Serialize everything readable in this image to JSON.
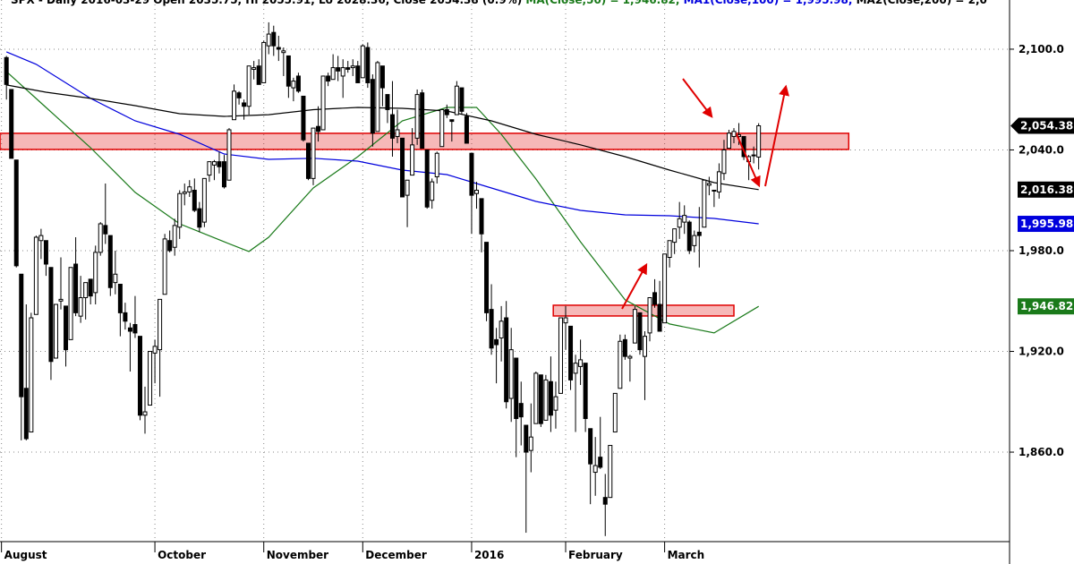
{
  "chart_data": {
    "type": "candlestick",
    "title_parts": [
      {
        "text": "SPX - Daily 2016-03-29 Open 2035.75, Hi 2055.91, Lo 2028.36, Close 2054.38 (0.9%) ",
        "color": "#000000"
      },
      {
        "text": "MA(Close,50) = 1,946.82, ",
        "color": "#1a7a1a"
      },
      {
        "text": "MA1(Close,100) = 1,995.98, ",
        "color": "#0000dd"
      },
      {
        "text": "MA2(Close,200) = 2,0",
        "color": "#000000"
      }
    ],
    "xlim": [
      -1.3,
      202.7
    ],
    "xticks": [
      {
        "value": -1,
        "label": "August"
      },
      {
        "value": 30,
        "label": "October"
      },
      {
        "value": 52,
        "label": "November"
      },
      {
        "value": 72,
        "label": "December"
      },
      {
        "value": 94,
        "label": "2016"
      },
      {
        "value": 113,
        "label": "February"
      },
      {
        "value": 133,
        "label": "March"
      }
    ],
    "ylim": [
      1806.7,
      2129.3
    ],
    "yticks": [
      {
        "value": 1860,
        "label": "1,860.0"
      },
      {
        "value": 1920,
        "label": "1,920.0"
      },
      {
        "value": 1980,
        "label": "1,980.0"
      },
      {
        "value": 2040,
        "label": "2,040.0"
      },
      {
        "value": 2100,
        "label": "2,100.0"
      }
    ],
    "grid": true,
    "up_color": "#ffffff",
    "down_color": "#000000",
    "open": [
      2095,
      2076,
      2034,
      1966,
      1898,
      1872,
      1942,
      1986,
      1986,
      1970,
      1916,
      1950,
      1947,
      1927,
      1972,
      1941,
      1952,
      1963,
      1955,
      1979,
      1995,
      1989,
      1961,
      1960,
      1943,
      1934,
      1936,
      1929,
      1882,
      1888,
      1919,
      1921,
      1954,
      1986,
      1982,
      1994,
      2014,
      2015,
      2016,
      2005,
      1997,
      2025,
      2031,
      2033,
      2033,
      2022,
      2058,
      2074,
      2068,
      2066,
      2088,
      2090,
      2080,
      2102,
      2110,
      2101,
      2098,
      2096,
      2077,
      2084,
      2072,
      2044,
      2023,
      2054,
      2052,
      2084,
      2082,
      2089,
      2084,
      2089,
      2089,
      2090,
      2083,
      2101,
      2082,
      2051,
      2090,
      2073,
      2061,
      2048,
      2047,
      2013,
      2025,
      2047,
      2074,
      2040,
      2010,
      2024,
      2042,
      2064,
      2058,
      2061,
      2077,
      2060,
      2038,
      2014,
      2011,
      1985,
      1945,
      1927,
      1928,
      1940,
      1892,
      1916,
      1889,
      1876,
      1861,
      1877,
      1906,
      1879,
      1902,
      1885,
      1895,
      1937,
      1935,
      1907,
      1911,
      1913,
      1874,
      1848,
      1857,
      1833,
      1833,
      1872,
      1898,
      1927,
      1916,
      1925,
      1943,
      1917,
      1931,
      1955,
      1948,
      1937,
      1976,
      1985,
      1994,
      1997,
      1997,
      1983,
      1991,
      1994,
      2019,
      2016,
      2015,
      2026,
      2041,
      2048,
      2048,
      2048,
      2033,
      2037,
      2035.75
    ],
    "high": [
      2096,
      2076,
      2034,
      1966,
      1948,
      1943,
      1989,
      1993,
      1986,
      1970,
      1948,
      1976,
      1947,
      1970,
      1988,
      1965,
      1961,
      1963,
      1983,
      1997,
      2020,
      1989,
      1980,
      1960,
      1949,
      1937,
      1953,
      1929,
      1899,
      1920,
      1927,
      1951,
      1990,
      1992,
      1999,
      2016,
      2020,
      2022,
      2023,
      2009,
      2022,
      2033,
      2034,
      2039,
      2037,
      2053,
      2079,
      2075,
      2070,
      2090,
      2093,
      2094,
      2105,
      2116,
      2114,
      2108,
      2101,
      2096,
      2083,
      2086,
      2072,
      2044,
      2053,
      2066,
      2084,
      2086,
      2097,
      2096,
      2094,
      2093,
      2094,
      2093,
      2103,
      2104,
      2085,
      2093,
      2090,
      2073,
      2081,
      2064,
      2047,
      2022,
      2053,
      2076,
      2076,
      2040,
      2023,
      2039,
      2064,
      2067,
      2058,
      2081,
      2077,
      2062,
      2038,
      2021,
      2011,
      1985,
      1960,
      1934,
      1947,
      1950,
      1934,
      1916,
      1902,
      1876,
      1889,
      1908,
      1906,
      1906,
      1917,
      1902,
      1940,
      1947,
      1935,
      1918,
      1927,
      1913,
      1874,
      1869,
      1881,
      1847,
      1864,
      1895,
      1930,
      1930,
      1918,
      1947,
      1943,
      1932,
      1952,
      1963,
      1962,
      1978,
      1986,
      1993,
      2009,
      2007,
      1998,
      1992,
      2006,
      2022,
      2024,
      2016,
      2032,
      2046,
      2052,
      2053,
      2056,
      2048,
      2037,
      2042,
      2055.91
    ],
    "low": [
      2070,
      2035,
      1970,
      1867,
      1867,
      1872,
      1942,
      1975,
      1965,
      1903,
      1916,
      1945,
      1911,
      1927,
      1941,
      1937,
      1939,
      1948,
      1948,
      1977,
      1984,
      1953,
      1954,
      1929,
      1933,
      1908,
      1928,
      1879,
      1871,
      1888,
      1901,
      1893,
      1954,
      1979,
      1977,
      1987,
      2007,
      2012,
      2003,
      1991,
      1994,
      2021,
      2022,
      2026,
      2017,
      2022,
      2058,
      2067,
      2058,
      2061,
      2082,
      2079,
      2080,
      2097,
      2096,
      2093,
      2084,
      2071,
      2069,
      2074,
      2045,
      2022,
      2019,
      2045,
      2052,
      2078,
      2082,
      2081,
      2071,
      2086,
      2084,
      2080,
      2083,
      2077,
      2042,
      2051,
      2066,
      2056,
      2036,
      2044,
      2012,
      1994,
      2025,
      2043,
      2041,
      2005,
      2005,
      2020,
      2042,
      2059,
      2045,
      2061,
      2061,
      2044,
      1990,
      2005,
      1979,
      1938,
      1918,
      1901,
      1914,
      1886,
      1878,
      1857,
      1864,
      1812,
      1848,
      1877,
      1875,
      1879,
      1872,
      1874,
      1895,
      1921,
      1897,
      1872,
      1900,
      1872,
      1829,
      1834,
      1850,
      1810,
      1833,
      1872,
      1898,
      1915,
      1902,
      1925,
      1918,
      1891,
      1926,
      1946,
      1932,
      1937,
      1970,
      1978,
      1987,
      1990,
      1978,
      1979,
      1970,
      1994,
      2013,
      2006,
      2011,
      2022,
      2041,
      2044,
      2043,
      2034,
      2022,
      2032,
      2028.36
    ],
    "close": [
      2079,
      2035,
      1971,
      1893,
      1868,
      1940,
      1988,
      1989,
      1972,
      1914,
      1948,
      1951,
      1921,
      1970,
      1943,
      1952,
      1961,
      1953,
      1979,
      1996,
      1990,
      1958,
      1966,
      1943,
      1938,
      1932,
      1931,
      1882,
      1884,
      1920,
      1923,
      1951,
      1987,
      1980,
      1995,
      2014,
      2015,
      2018,
      2004,
      1994,
      2023,
      2033,
      2033,
      2030,
      2018,
      2052,
      2075,
      2071,
      2066,
      2090,
      2089,
      2079,
      2104,
      2109,
      2102,
      2100,
      2099,
      2078,
      2081,
      2075,
      2046,
      2023,
      2053,
      2051,
      2084,
      2081,
      2089,
      2087,
      2089,
      2088,
      2090,
      2080,
      2102,
      2080,
      2050,
      2092,
      2077,
      2064,
      2047,
      2052,
      2012,
      2022,
      2043,
      2073,
      2041,
      2006,
      2021,
      2038,
      2064,
      2061,
      2057,
      2078,
      2063,
      2044,
      2013,
      2016,
      1990,
      1943,
      1922,
      1924,
      1938,
      1890,
      1921,
      1880,
      1881,
      1860,
      1869,
      1907,
      1877,
      1903,
      1882,
      1893,
      1940,
      1940,
      1903,
      1913,
      1915,
      1880,
      1853,
      1852,
      1851,
      1829,
      1864,
      1895,
      1926,
      1917,
      1917,
      1945,
      1921,
      1929,
      1952,
      1948,
      1932,
      1978,
      1986,
      1993,
      1999,
      2001,
      1980,
      1989,
      1989,
      2022,
      2020,
      2016,
      2027,
      2040,
      2050,
      2051,
      2049,
      2036,
      2036,
      2037,
      2054.38
    ],
    "series": [
      {
        "name": "MA(Close,50)",
        "color": "#1a7a1a",
        "x": [
          0,
          8,
          17,
          26,
          35,
          44,
          49,
          53,
          62,
          71,
          80,
          89,
          95,
          100,
          107,
          116,
          125,
          134,
          143,
          152
        ],
        "values": [
          2086.7,
          2065.3,
          2041.3,
          2014.7,
          1996,
          1985.3,
          1979.5,
          1988,
          2017.3,
          2036,
          2057.3,
          2065.3,
          2065.3,
          2049.3,
          2022.7,
          1985.3,
          1950.7,
          1936.3,
          1931,
          1946.82
        ]
      },
      {
        "name": "MA1(Close,100)",
        "color": "#0000dd",
        "x": [
          0,
          6,
          17,
          26,
          35,
          44,
          53,
          62,
          71,
          80,
          89,
          98,
          107,
          116,
          125,
          134,
          143,
          152
        ],
        "values": [
          2098.4,
          2091,
          2070.7,
          2057.3,
          2049.3,
          2037.6,
          2034.4,
          2035,
          2033.3,
          2028,
          2025.3,
          2017.3,
          2009.3,
          2004,
          2001.3,
          2000.8,
          1999.2,
          1995.98
        ]
      },
      {
        "name": "MA2(Close,200)",
        "color": "#000000",
        "x": [
          0,
          8,
          17,
          26,
          35,
          44,
          53,
          62,
          71,
          80,
          89,
          98,
          107,
          116,
          125,
          134,
          143,
          152
        ],
        "values": [
          2078.7,
          2074.4,
          2070.7,
          2066.4,
          2061.6,
          2060,
          2061,
          2064,
          2065.3,
          2064.8,
          2063.2,
          2057.3,
          2049.3,
          2043,
          2036,
          2028,
          2020.5,
          2016.38
        ]
      }
    ],
    "zones": [
      {
        "xlim": [
          -1.3,
          170.2
        ],
        "ylim": [
          2040.3,
          2049.9
        ],
        "color": "#e00000"
      },
      {
        "xlim": [
          110.5,
          147
        ],
        "ylim": [
          1941.1,
          1947.5
        ],
        "color": "#e00000"
      }
    ],
    "last_labels": [
      {
        "value": 2054.38,
        "label": "2,054.38",
        "color": "#000000",
        "shape": "tag"
      },
      {
        "value": 2016.38,
        "label": "2,016.38",
        "color": "#000000",
        "shape": "box"
      },
      {
        "value": 1995.98,
        "label": "1,995.98",
        "color": "#0000dd",
        "shape": "box"
      },
      {
        "value": 1946.82,
        "label": "1,946.82",
        "color": "#1a7a1a",
        "shape": "box"
      }
    ]
  }
}
